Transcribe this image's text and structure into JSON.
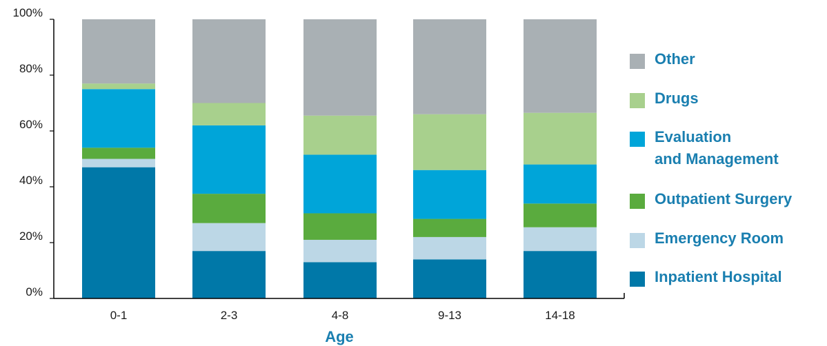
{
  "chart_data": {
    "type": "bar",
    "stacked": true,
    "categories": [
      "0-1",
      "2-3",
      "4-8",
      "9-13",
      "14-18"
    ],
    "series": [
      {
        "name": "Inpatient Hospital",
        "color": "#0078a8",
        "values": [
          47,
          17,
          13,
          14,
          17
        ]
      },
      {
        "name": "Emergency Room",
        "color": "#bcd7e6",
        "values": [
          3,
          10,
          8,
          8,
          8.5
        ]
      },
      {
        "name": "Outpatient Surgery",
        "color": "#5aab3e",
        "values": [
          4,
          10.5,
          9.5,
          6.5,
          8.5
        ]
      },
      {
        "name": "Evaluation\nand Management",
        "color": "#00a5d9",
        "values": [
          21,
          24.5,
          21,
          17.5,
          14
        ]
      },
      {
        "name": "Drugs",
        "color": "#a8d08d",
        "values": [
          2,
          8,
          14,
          20,
          18.5
        ]
      },
      {
        "name": "Other",
        "color": "#a9b0b4",
        "values": [
          23,
          30,
          34.5,
          34,
          33.5
        ]
      }
    ],
    "xlabel": "Age",
    "ylabel": "",
    "ylim": [
      0,
      100
    ],
    "yticks": [
      "0%",
      "20%",
      "40%",
      "60%",
      "80%",
      "100%"
    ],
    "legend_position": "right"
  }
}
